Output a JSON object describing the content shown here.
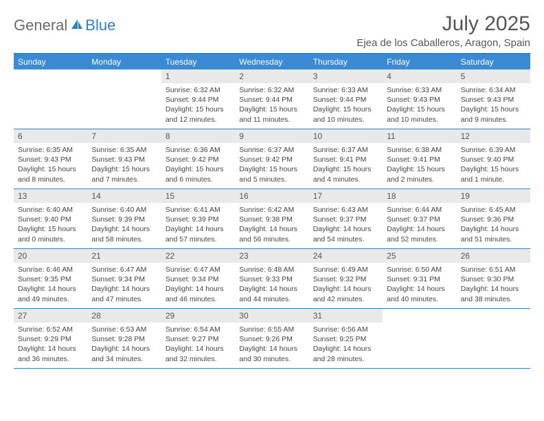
{
  "logo": {
    "text1": "General",
    "text2": "Blue"
  },
  "title": "July 2025",
  "location": "Ejea de los Caballeros, Aragon, Spain",
  "colors": {
    "header_bg": "#3b8bd4",
    "border": "#2f7fc5",
    "daynum_bg": "#e9e9e9",
    "logo_gray": "#6b6b6b",
    "logo_blue": "#2f7fc5"
  },
  "day_names": [
    "Sunday",
    "Monday",
    "Tuesday",
    "Wednesday",
    "Thursday",
    "Friday",
    "Saturday"
  ],
  "weeks": [
    [
      null,
      null,
      {
        "n": "1",
        "sr": "6:32 AM",
        "ss": "9:44 PM",
        "dl": "15 hours and 12 minutes."
      },
      {
        "n": "2",
        "sr": "6:32 AM",
        "ss": "9:44 PM",
        "dl": "15 hours and 11 minutes."
      },
      {
        "n": "3",
        "sr": "6:33 AM",
        "ss": "9:44 PM",
        "dl": "15 hours and 10 minutes."
      },
      {
        "n": "4",
        "sr": "6:33 AM",
        "ss": "9:43 PM",
        "dl": "15 hours and 10 minutes."
      },
      {
        "n": "5",
        "sr": "6:34 AM",
        "ss": "9:43 PM",
        "dl": "15 hours and 9 minutes."
      }
    ],
    [
      {
        "n": "6",
        "sr": "6:35 AM",
        "ss": "9:43 PM",
        "dl": "15 hours and 8 minutes."
      },
      {
        "n": "7",
        "sr": "6:35 AM",
        "ss": "9:43 PM",
        "dl": "15 hours and 7 minutes."
      },
      {
        "n": "8",
        "sr": "6:36 AM",
        "ss": "9:42 PM",
        "dl": "15 hours and 6 minutes."
      },
      {
        "n": "9",
        "sr": "6:37 AM",
        "ss": "9:42 PM",
        "dl": "15 hours and 5 minutes."
      },
      {
        "n": "10",
        "sr": "6:37 AM",
        "ss": "9:41 PM",
        "dl": "15 hours and 4 minutes."
      },
      {
        "n": "11",
        "sr": "6:38 AM",
        "ss": "9:41 PM",
        "dl": "15 hours and 2 minutes."
      },
      {
        "n": "12",
        "sr": "6:39 AM",
        "ss": "9:40 PM",
        "dl": "15 hours and 1 minute."
      }
    ],
    [
      {
        "n": "13",
        "sr": "6:40 AM",
        "ss": "9:40 PM",
        "dl": "15 hours and 0 minutes."
      },
      {
        "n": "14",
        "sr": "6:40 AM",
        "ss": "9:39 PM",
        "dl": "14 hours and 58 minutes."
      },
      {
        "n": "15",
        "sr": "6:41 AM",
        "ss": "9:39 PM",
        "dl": "14 hours and 57 minutes."
      },
      {
        "n": "16",
        "sr": "6:42 AM",
        "ss": "9:38 PM",
        "dl": "14 hours and 56 minutes."
      },
      {
        "n": "17",
        "sr": "6:43 AM",
        "ss": "9:37 PM",
        "dl": "14 hours and 54 minutes."
      },
      {
        "n": "18",
        "sr": "6:44 AM",
        "ss": "9:37 PM",
        "dl": "14 hours and 52 minutes."
      },
      {
        "n": "19",
        "sr": "6:45 AM",
        "ss": "9:36 PM",
        "dl": "14 hours and 51 minutes."
      }
    ],
    [
      {
        "n": "20",
        "sr": "6:46 AM",
        "ss": "9:35 PM",
        "dl": "14 hours and 49 minutes."
      },
      {
        "n": "21",
        "sr": "6:47 AM",
        "ss": "9:34 PM",
        "dl": "14 hours and 47 minutes."
      },
      {
        "n": "22",
        "sr": "6:47 AM",
        "ss": "9:34 PM",
        "dl": "14 hours and 46 minutes."
      },
      {
        "n": "23",
        "sr": "6:48 AM",
        "ss": "9:33 PM",
        "dl": "14 hours and 44 minutes."
      },
      {
        "n": "24",
        "sr": "6:49 AM",
        "ss": "9:32 PM",
        "dl": "14 hours and 42 minutes."
      },
      {
        "n": "25",
        "sr": "6:50 AM",
        "ss": "9:31 PM",
        "dl": "14 hours and 40 minutes."
      },
      {
        "n": "26",
        "sr": "6:51 AM",
        "ss": "9:30 PM",
        "dl": "14 hours and 38 minutes."
      }
    ],
    [
      {
        "n": "27",
        "sr": "6:52 AM",
        "ss": "9:29 PM",
        "dl": "14 hours and 36 minutes."
      },
      {
        "n": "28",
        "sr": "6:53 AM",
        "ss": "9:28 PM",
        "dl": "14 hours and 34 minutes."
      },
      {
        "n": "29",
        "sr": "6:54 AM",
        "ss": "9:27 PM",
        "dl": "14 hours and 32 minutes."
      },
      {
        "n": "30",
        "sr": "6:55 AM",
        "ss": "9:26 PM",
        "dl": "14 hours and 30 minutes."
      },
      {
        "n": "31",
        "sr": "6:56 AM",
        "ss": "9:25 PM",
        "dl": "14 hours and 28 minutes."
      },
      null,
      null
    ]
  ],
  "labels": {
    "sunrise": "Sunrise:",
    "sunset": "Sunset:",
    "daylight": "Daylight:"
  }
}
